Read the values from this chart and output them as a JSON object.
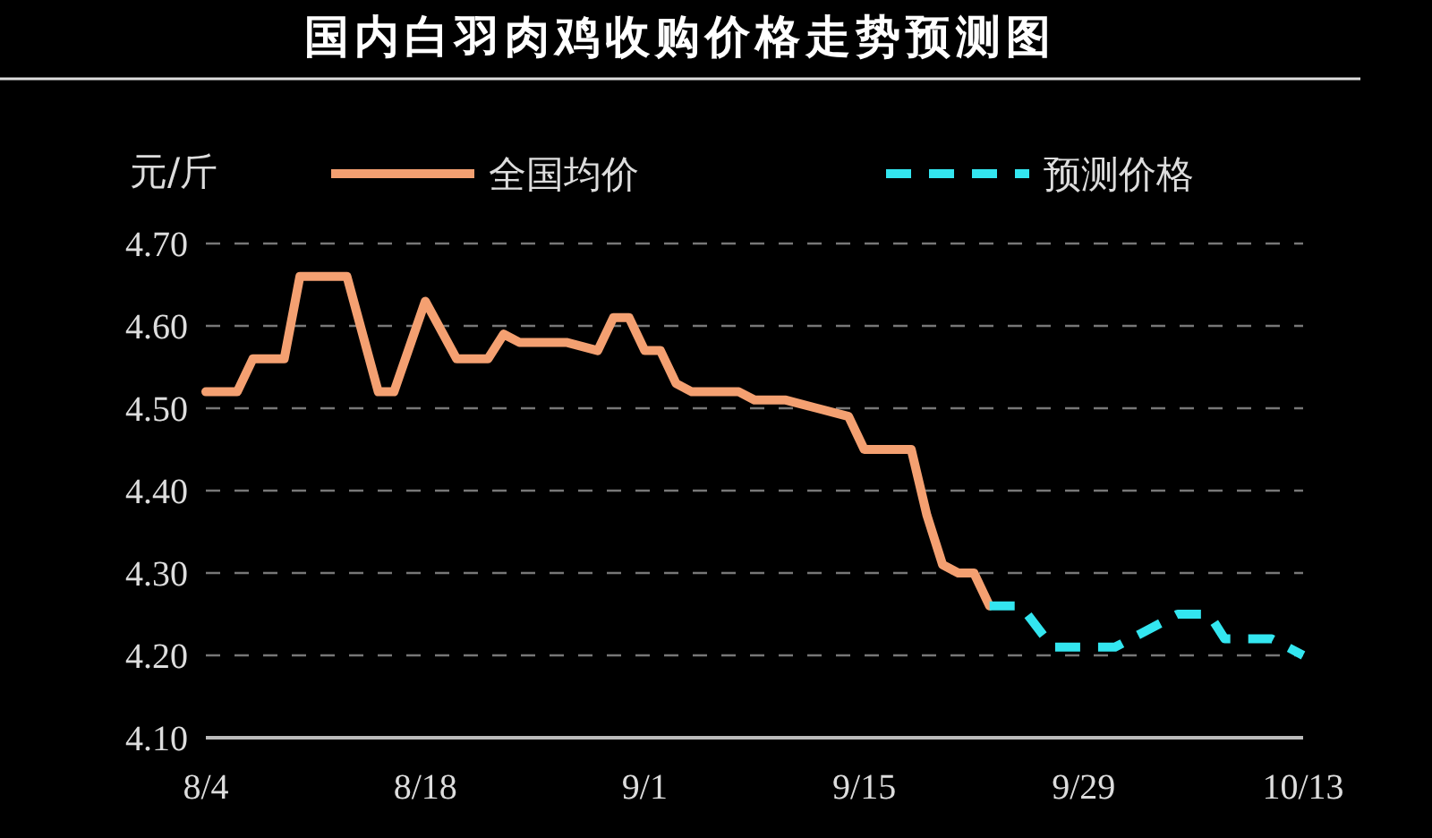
{
  "chart_data": {
    "type": "line",
    "title": "国内白羽肉鸡收购价格走势预测图",
    "ylabel": "元/斤",
    "ylim": [
      4.1,
      4.7
    ],
    "yticks": [
      {
        "value": 4.1,
        "label": "4.10"
      },
      {
        "value": 4.2,
        "label": "4.20"
      },
      {
        "value": 4.3,
        "label": "4.30"
      },
      {
        "value": 4.4,
        "label": "4.40"
      },
      {
        "value": 4.5,
        "label": "4.50"
      },
      {
        "value": 4.6,
        "label": "4.60"
      },
      {
        "value": 4.7,
        "label": "4.70"
      }
    ],
    "xlim": [
      "--08-04",
      "--10-13"
    ],
    "xticks": [
      {
        "value": "--08-04",
        "label": "8/4"
      },
      {
        "value": "--08-18",
        "label": "8/18"
      },
      {
        "value": "--09-01",
        "label": "9/1"
      },
      {
        "value": "--09-15",
        "label": "9/15"
      },
      {
        "value": "--09-29",
        "label": "9/29"
      },
      {
        "value": "--10-13",
        "label": "10/13"
      }
    ],
    "grid": "y",
    "legend": "top",
    "series": [
      {
        "name": "全国均价",
        "color": "#f4a071",
        "line_style": "solid",
        "x": [
          "--08-04",
          "--08-06",
          "--08-07",
          "--08-09",
          "--08-10",
          "--08-13",
          "--08-15",
          "--08-16",
          "--08-18",
          "--08-20",
          "--08-22",
          "--08-23",
          "--08-24",
          "--08-27",
          "--08-29",
          "--08-30",
          "--08-31",
          "--09-01",
          "--09-02",
          "--09-03",
          "--09-04",
          "--09-07",
          "--09-08",
          "--09-10",
          "--09-12",
          "--09-14",
          "--09-15",
          "--09-18",
          "--09-19",
          "--09-20",
          "--09-21",
          "--09-22",
          "--09-23"
        ],
        "values": [
          4.52,
          4.52,
          4.56,
          4.56,
          4.66,
          4.66,
          4.52,
          4.52,
          4.63,
          4.56,
          4.56,
          4.59,
          4.58,
          4.58,
          4.57,
          4.61,
          4.61,
          4.57,
          4.57,
          4.53,
          4.52,
          4.52,
          4.51,
          4.51,
          4.5,
          4.49,
          4.45,
          4.45,
          4.37,
          4.31,
          4.3,
          4.3,
          4.26
        ]
      },
      {
        "name": "预测价格",
        "color": "#33e6f0",
        "line_style": "dashed",
        "x": [
          "--09-23",
          "--09-25",
          "--09-27",
          "--09-30",
          "--10-01",
          "--10-05",
          "--10-07",
          "--10-08",
          "--10-11",
          "--10-13"
        ],
        "values": [
          4.26,
          4.26,
          4.21,
          4.21,
          4.21,
          4.25,
          4.25,
          4.22,
          4.22,
          4.2
        ]
      }
    ]
  }
}
